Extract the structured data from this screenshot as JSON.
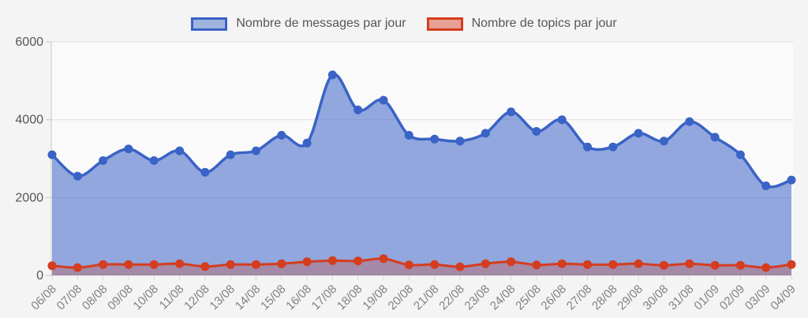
{
  "legend": {
    "messages_label": "Nombre de messages par jour",
    "topics_label": "Nombre de topics par jour"
  },
  "colors": {
    "page_bg": "#f4f4f4",
    "plot_bg": "#fafafa",
    "grid": "#e0e0e0",
    "axis": "#c8c8c8",
    "tick": "#d8d8d8",
    "y_label": "#555555",
    "x_label": "#808080",
    "messages_line": "#3a63c6",
    "messages_fill": "rgba(58,99,198,0.55)",
    "topics_line": "#d63c1e",
    "topics_fill": "rgba(214,60,30,0.28)",
    "legend_messages_fill": "rgba(58,99,198,0.45)",
    "legend_topics_fill": "rgba(214,60,30,0.45)"
  },
  "chart_data": {
    "type": "area",
    "title": "",
    "xlabel": "",
    "ylabel": "",
    "categories": [
      "06/08",
      "07/08",
      "08/08",
      "09/08",
      "10/08",
      "11/08",
      "12/08",
      "13/08",
      "14/08",
      "15/08",
      "16/08",
      "17/08",
      "18/08",
      "19/08",
      "20/08",
      "21/08",
      "22/08",
      "23/08",
      "24/08",
      "25/08",
      "26/08",
      "27/08",
      "28/08",
      "29/08",
      "30/08",
      "31/08",
      "01/09",
      "02/09",
      "03/09",
      "04/09"
    ],
    "series": [
      {
        "name": "Nombre de messages par jour",
        "values": [
          3100,
          2550,
          2950,
          3250,
          2950,
          3200,
          2650,
          3100,
          3200,
          3600,
          3400,
          5150,
          4250,
          4500,
          3600,
          3500,
          3450,
          3650,
          4200,
          3700,
          4000,
          3300,
          3300,
          3650,
          3450,
          3950,
          3550,
          3100,
          2300,
          2450
        ]
      },
      {
        "name": "Nombre de topics par jour",
        "values": [
          250,
          200,
          280,
          280,
          280,
          300,
          230,
          280,
          280,
          300,
          350,
          380,
          370,
          430,
          270,
          280,
          220,
          300,
          350,
          270,
          300,
          280,
          280,
          300,
          260,
          300,
          260,
          260,
          200,
          280
        ]
      }
    ],
    "ylim": [
      0,
      6000
    ],
    "yticks": [
      0,
      2000,
      4000,
      6000
    ],
    "grid": "horizontal",
    "legend_position": "top",
    "x_labels_rotated": true
  }
}
